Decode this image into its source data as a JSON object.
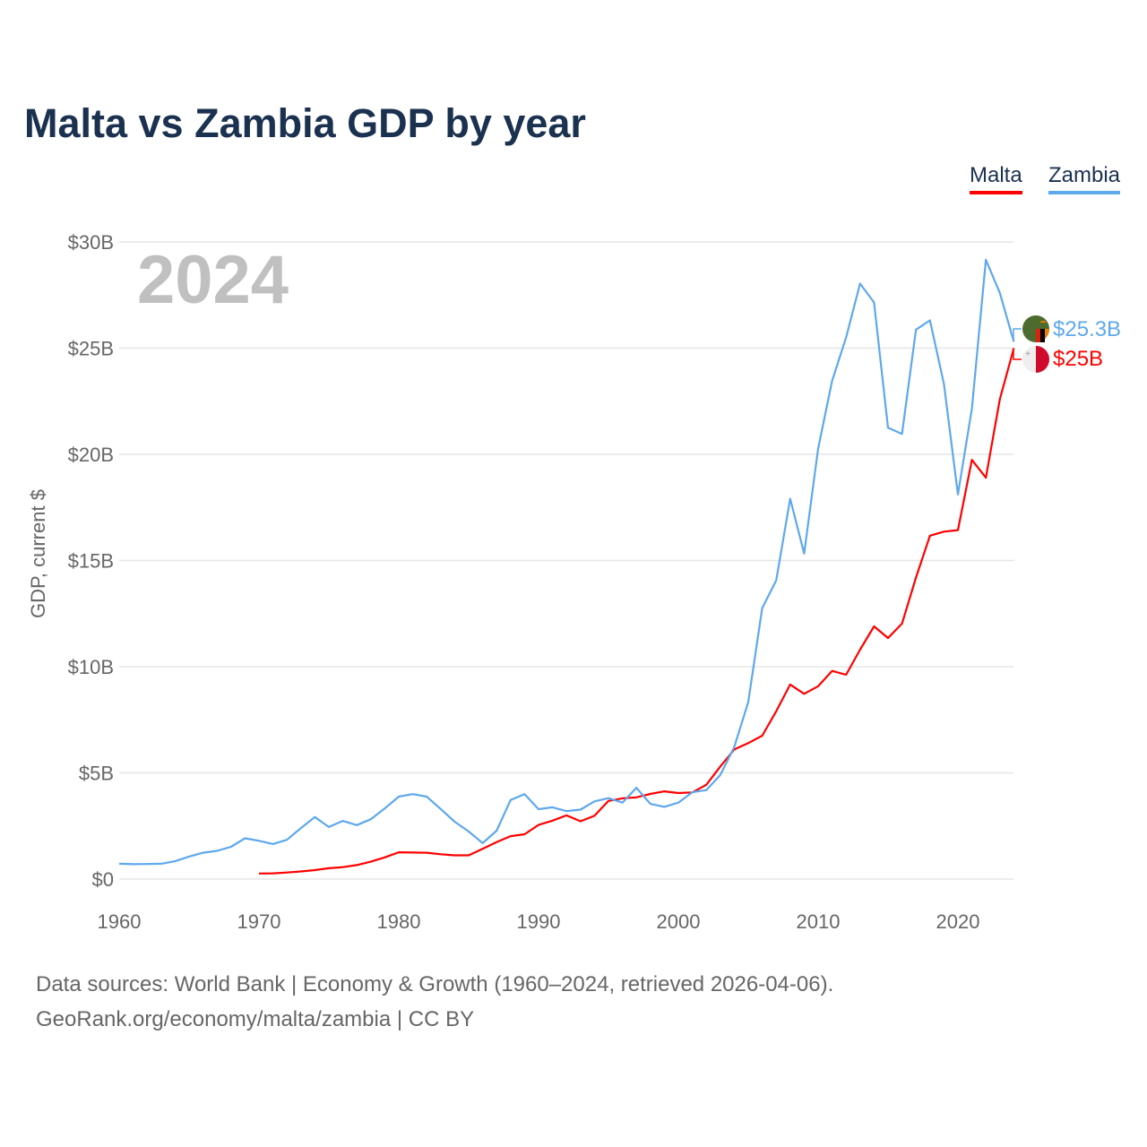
{
  "title": "Malta vs Zambia GDP by year",
  "footer": {
    "line1": "Data sources: World Bank | Economy & Growth (1960–2024, retrieved 2026-04-06).",
    "line2": "GeoRank.org/economy/malta/zambia | CC BY"
  },
  "chart_data": {
    "type": "line",
    "title": "Malta vs Zambia GDP by year",
    "xlabel": "",
    "ylabel": "GDP, current $",
    "xlim": [
      1960,
      2024
    ],
    "ylim": [
      0,
      30
    ],
    "grid": true,
    "legend_placement": "top-right",
    "year_watermark": "2024",
    "x_ticks": [
      "1960",
      "1970",
      "1980",
      "1990",
      "2000",
      "2010",
      "2020"
    ],
    "y_ticks": [
      {
        "value": 0,
        "label": "$0"
      },
      {
        "value": 5,
        "label": "$5B"
      },
      {
        "value": 10,
        "label": "$10B"
      },
      {
        "value": 15,
        "label": "$15B"
      },
      {
        "value": 20,
        "label": "$20B"
      },
      {
        "value": 25,
        "label": "$25B"
      },
      {
        "value": 30,
        "label": "$30B"
      }
    ],
    "series": [
      {
        "name": "Malta",
        "color": "#ff0000",
        "flag": "malta-flag",
        "end_label": "$25B",
        "start_year": 1970,
        "values": [
          0.26,
          0.27,
          0.31,
          0.36,
          0.42,
          0.51,
          0.56,
          0.66,
          0.82,
          1.02,
          1.26,
          1.25,
          1.24,
          1.17,
          1.12,
          1.12,
          1.42,
          1.74,
          2.02,
          2.11,
          2.55,
          2.75,
          3.0,
          2.72,
          2.98,
          3.68,
          3.8,
          3.85,
          4.01,
          4.13,
          4.05,
          4.08,
          4.44,
          5.3,
          6.1,
          6.4,
          6.75,
          7.9,
          9.16,
          8.72,
          9.08,
          9.8,
          9.62,
          10.8,
          11.9,
          11.35,
          12.03,
          14.2,
          16.17,
          16.36,
          16.43,
          19.74,
          18.9,
          22.6,
          25.0
        ]
      },
      {
        "name": "Zambia",
        "color": "#5ea8ec",
        "flag": "zambia-flag",
        "end_label": "$25.3B",
        "start_year": 1960,
        "values": [
          0.72,
          0.7,
          0.71,
          0.72,
          0.84,
          1.06,
          1.24,
          1.33,
          1.52,
          1.92,
          1.8,
          1.65,
          1.85,
          2.4,
          2.92,
          2.45,
          2.74,
          2.54,
          2.82,
          3.33,
          3.88,
          4.0,
          3.88,
          3.3,
          2.7,
          2.24,
          1.69,
          2.28,
          3.72,
          4.0,
          3.29,
          3.38,
          3.2,
          3.27,
          3.66,
          3.81,
          3.6,
          4.3,
          3.54,
          3.4,
          3.6,
          4.09,
          4.19,
          4.9,
          6.22,
          8.33,
          12.76,
          14.06,
          17.91,
          15.33,
          20.27,
          23.46,
          25.5,
          28.04,
          27.15,
          21.25,
          20.96,
          25.87,
          26.31,
          23.31,
          18.11,
          22.15,
          29.16,
          27.6,
          25.3
        ]
      }
    ]
  }
}
